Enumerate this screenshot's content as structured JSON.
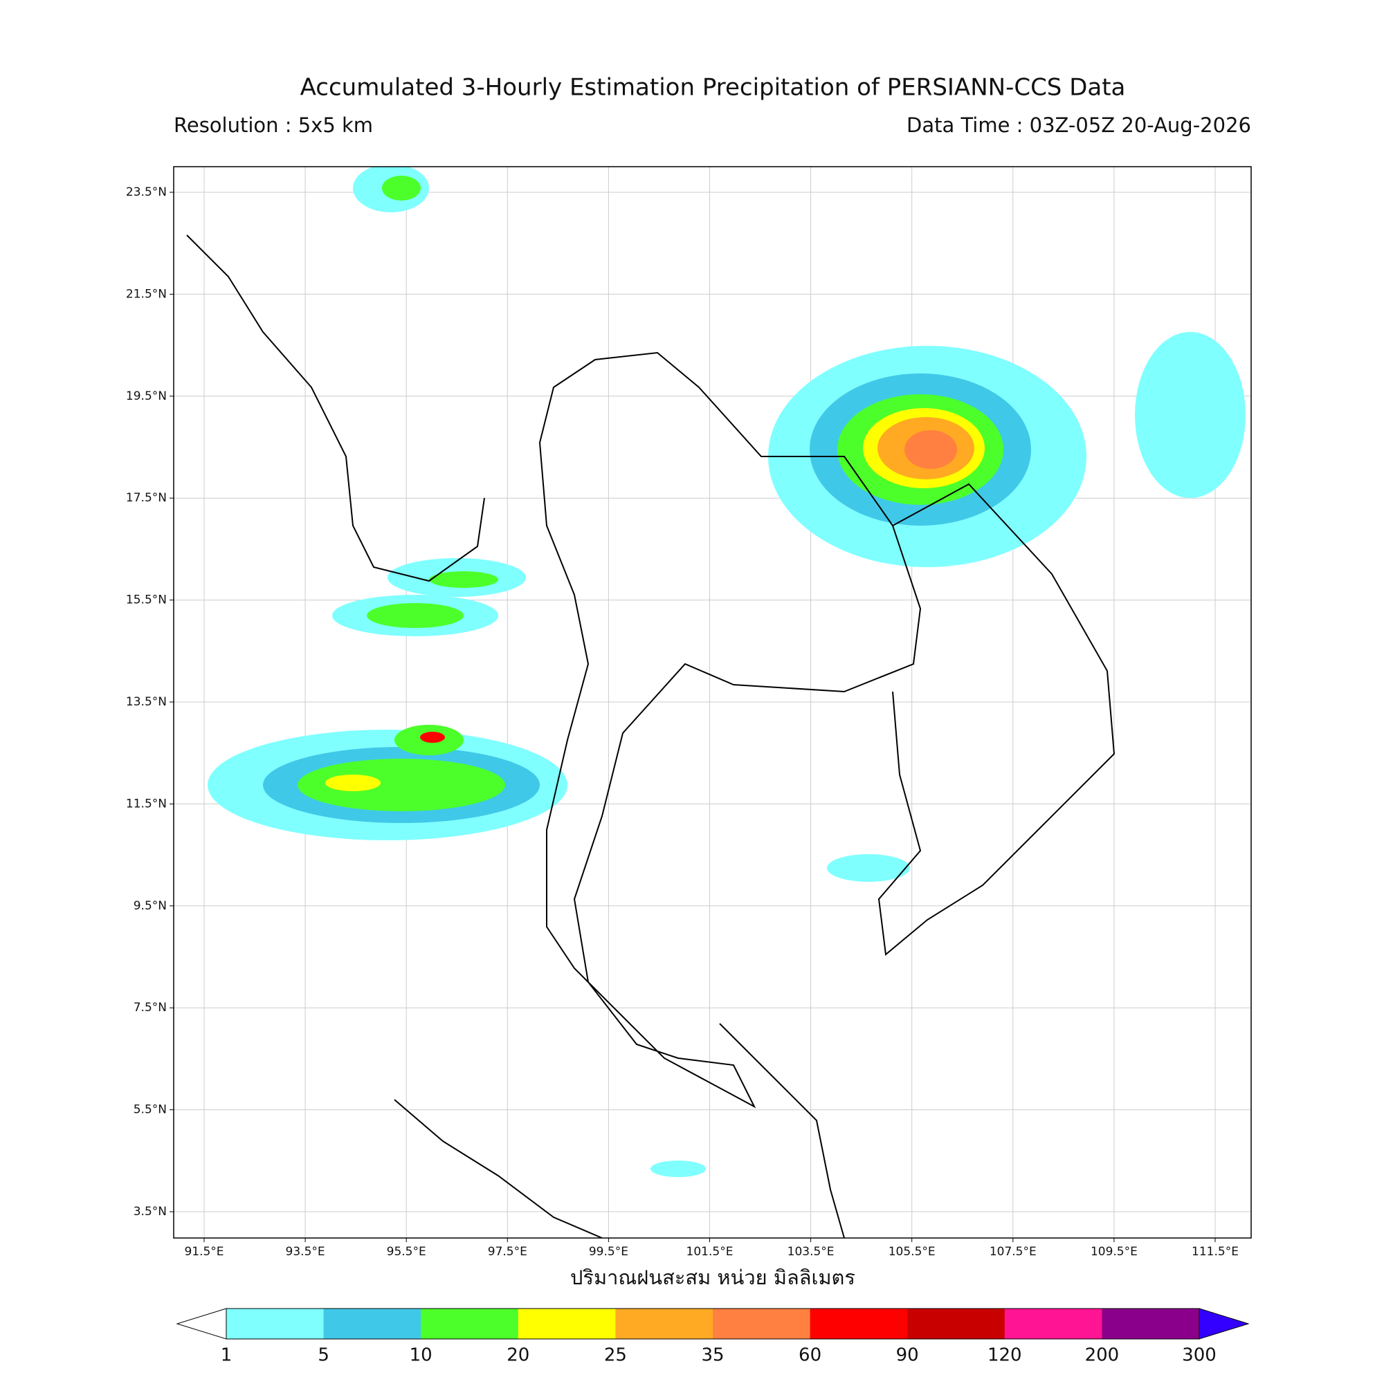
{
  "header": {
    "title": "Accumulated 3-Hourly Estimation Precipitation of PERSIANN-CCS Data",
    "resolution": "Resolution : 5x5 km",
    "data_time": "Data Time : 03Z-05Z 20-Aug-2026"
  },
  "map": {
    "lon_labels": [
      "91.5°E",
      "93.5°E",
      "95.5°E",
      "97.5°E",
      "99.5°E",
      "101.5°E",
      "103.5°E",
      "105.5°E",
      "107.5°E",
      "109.5°E",
      "111.5°E"
    ],
    "lat_labels": [
      "23.5°N",
      "21.5°N",
      "19.5°N",
      "17.5°N",
      "15.5°N",
      "13.5°N",
      "11.5°N",
      "9.5°N",
      "7.5°N",
      "5.5°N",
      "3.5°N"
    ]
  },
  "colorbar": {
    "label": "ปริมาณฝนสะสม หน่วย มิลลิเมตร",
    "levels": [
      1,
      5,
      10,
      20,
      25,
      35,
      60,
      90,
      120,
      200,
      300
    ],
    "colors": [
      "#80ffff",
      "#40c8e8",
      "#4cff2a",
      "#ffff00",
      "#ffaa22",
      "#ff8040",
      "#ff0000",
      "#c80000",
      "#ff1493",
      "#8b008b"
    ],
    "under_color": "#ffffff",
    "over_color": "#3300ff"
  }
}
